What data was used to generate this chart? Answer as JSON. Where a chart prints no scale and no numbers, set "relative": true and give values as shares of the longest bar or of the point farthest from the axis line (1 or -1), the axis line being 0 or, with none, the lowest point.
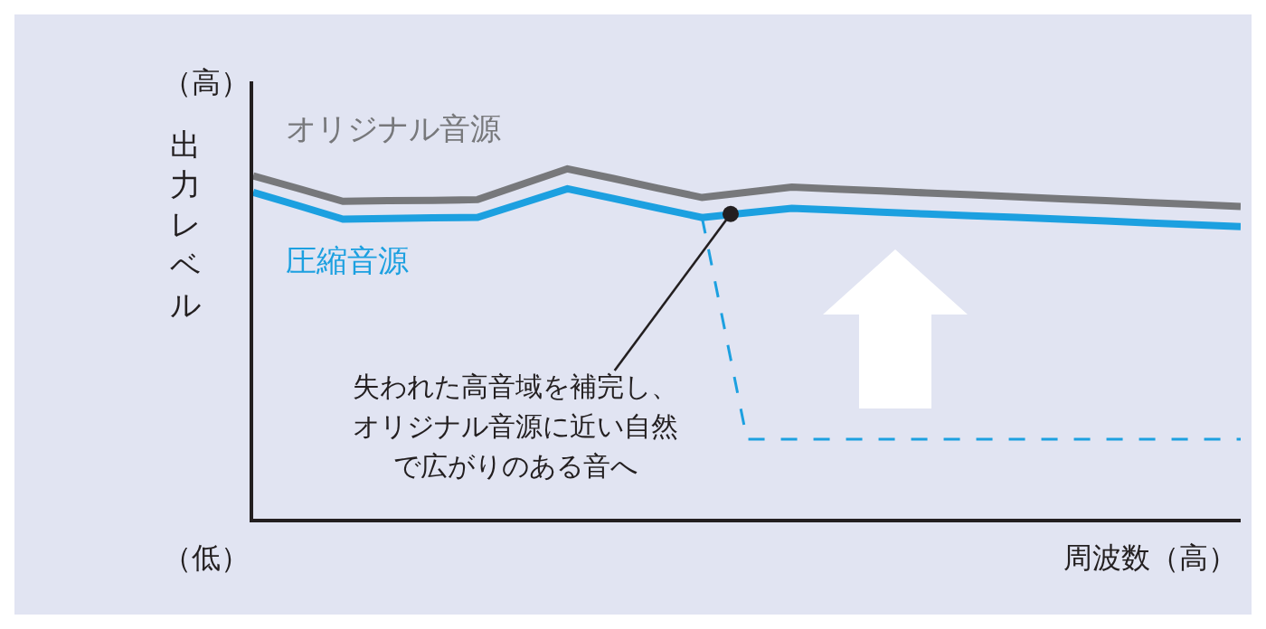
{
  "chart_data": {
    "type": "line",
    "relative": true,
    "ylabel": "出力レベル",
    "xlabel": "周波数（高）",
    "annotations": [
      "（高）",
      "（低）",
      "失われた高音域を補完し、オリジナル音源に近い自然で広がりのある音へ"
    ],
    "categories": [
      null,
      null,
      null,
      null,
      null,
      null,
      null,
      null,
      null,
      null,
      null,
      null,
      null,
      null,
      null,
      null,
      null,
      null,
      null,
      null,
      null,
      null,
      null
    ],
    "legend": false,
    "marker": "none",
    "line_style": "solid",
    "series": [
      {
        "name": "オリジナル音源",
        "color": "#77787b",
        "values": [
          0.98,
          0.944,
          0.907,
          0.909,
          0.91,
          0.912,
          0.956,
          1.0,
          0.973,
          0.945,
          0.918,
          0.933,
          0.948,
          0.942,
          0.937,
          0.931,
          0.926,
          0.92,
          0.914,
          0.909,
          0.903,
          0.898,
          0.892
        ]
      },
      {
        "name": "圧縮音源",
        "color": "#1ca0e0",
        "values": [
          0.933,
          0.895,
          0.856,
          0.858,
          0.86,
          0.861,
          0.902,
          0.943,
          0.916,
          0.888,
          0.861,
          0.874,
          0.887,
          0.882,
          0.876,
          0.871,
          0.866,
          0.861,
          0.856,
          0.851,
          0.845,
          0.84,
          0.835
        ]
      },
      {
        "color": "#1ca0e0",
        "line_style": "dashed",
        "values": [
          null,
          null,
          null,
          null,
          null,
          null,
          null,
          null,
          null,
          null,
          0.861,
          0.227,
          0.227,
          0.227,
          0.227,
          0.227,
          0.227,
          0.227,
          0.227,
          0.227,
          0.227,
          0.227,
          0.227
        ]
      }
    ]
  }
}
